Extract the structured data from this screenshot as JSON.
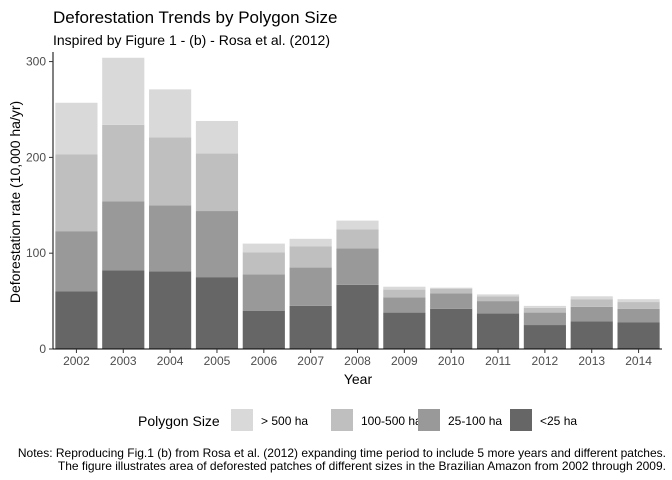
{
  "chart_data": {
    "type": "bar",
    "stacked": true,
    "title": "Deforestation Trends by Polygon Size",
    "subtitle": "Inspired by Figure 1 - (b) - Rosa et al. (2012)",
    "xlabel": "Year",
    "ylabel": "Deforestation rate (10,000 ha/yr)",
    "ylim": [
      0,
      310
    ],
    "yticks": [
      0,
      100,
      200,
      300
    ],
    "categories": [
      "2002",
      "2003",
      "2004",
      "2005",
      "2006",
      "2007",
      "2008",
      "2009",
      "2010",
      "2011",
      "2012",
      "2013",
      "2014"
    ],
    "legend_title": "Polygon Size",
    "legend_position": "bottom",
    "grid": false,
    "series": [
      {
        "name": "<25 ha",
        "color": "#666666",
        "values": [
          60,
          82,
          81,
          75,
          40,
          45,
          67,
          38,
          42,
          37,
          25,
          29,
          28
        ]
      },
      {
        "name": "25-100 ha",
        "color": "#999999",
        "values": [
          63,
          72,
          69,
          69,
          38,
          40,
          38,
          16,
          16,
          13,
          13,
          15,
          14
        ]
      },
      {
        "name": "100-500 ha",
        "color": "#bfbfbf",
        "values": [
          80,
          80,
          71,
          60,
          23,
          22,
          20,
          8,
          5,
          5,
          5,
          8,
          7
        ]
      },
      {
        "name": "> 500 ha",
        "color": "#d9d9d9",
        "values": [
          54,
          70,
          50,
          34,
          9,
          8,
          9,
          3,
          1,
          2,
          2,
          3,
          3
        ]
      }
    ],
    "legend_order": [
      "> 500 ha",
      "100-500 ha",
      "25-100 ha",
      "<25 ha"
    ]
  },
  "notes": {
    "line1": "Notes: Reproducing Fig.1 (b) from Rosa et al. (2012) expanding time period to include 5 more years and different patches.",
    "line2": "The figure illustrates area of deforested patches of different sizes in the Brazilian Amazon from 2002 through 2009."
  }
}
